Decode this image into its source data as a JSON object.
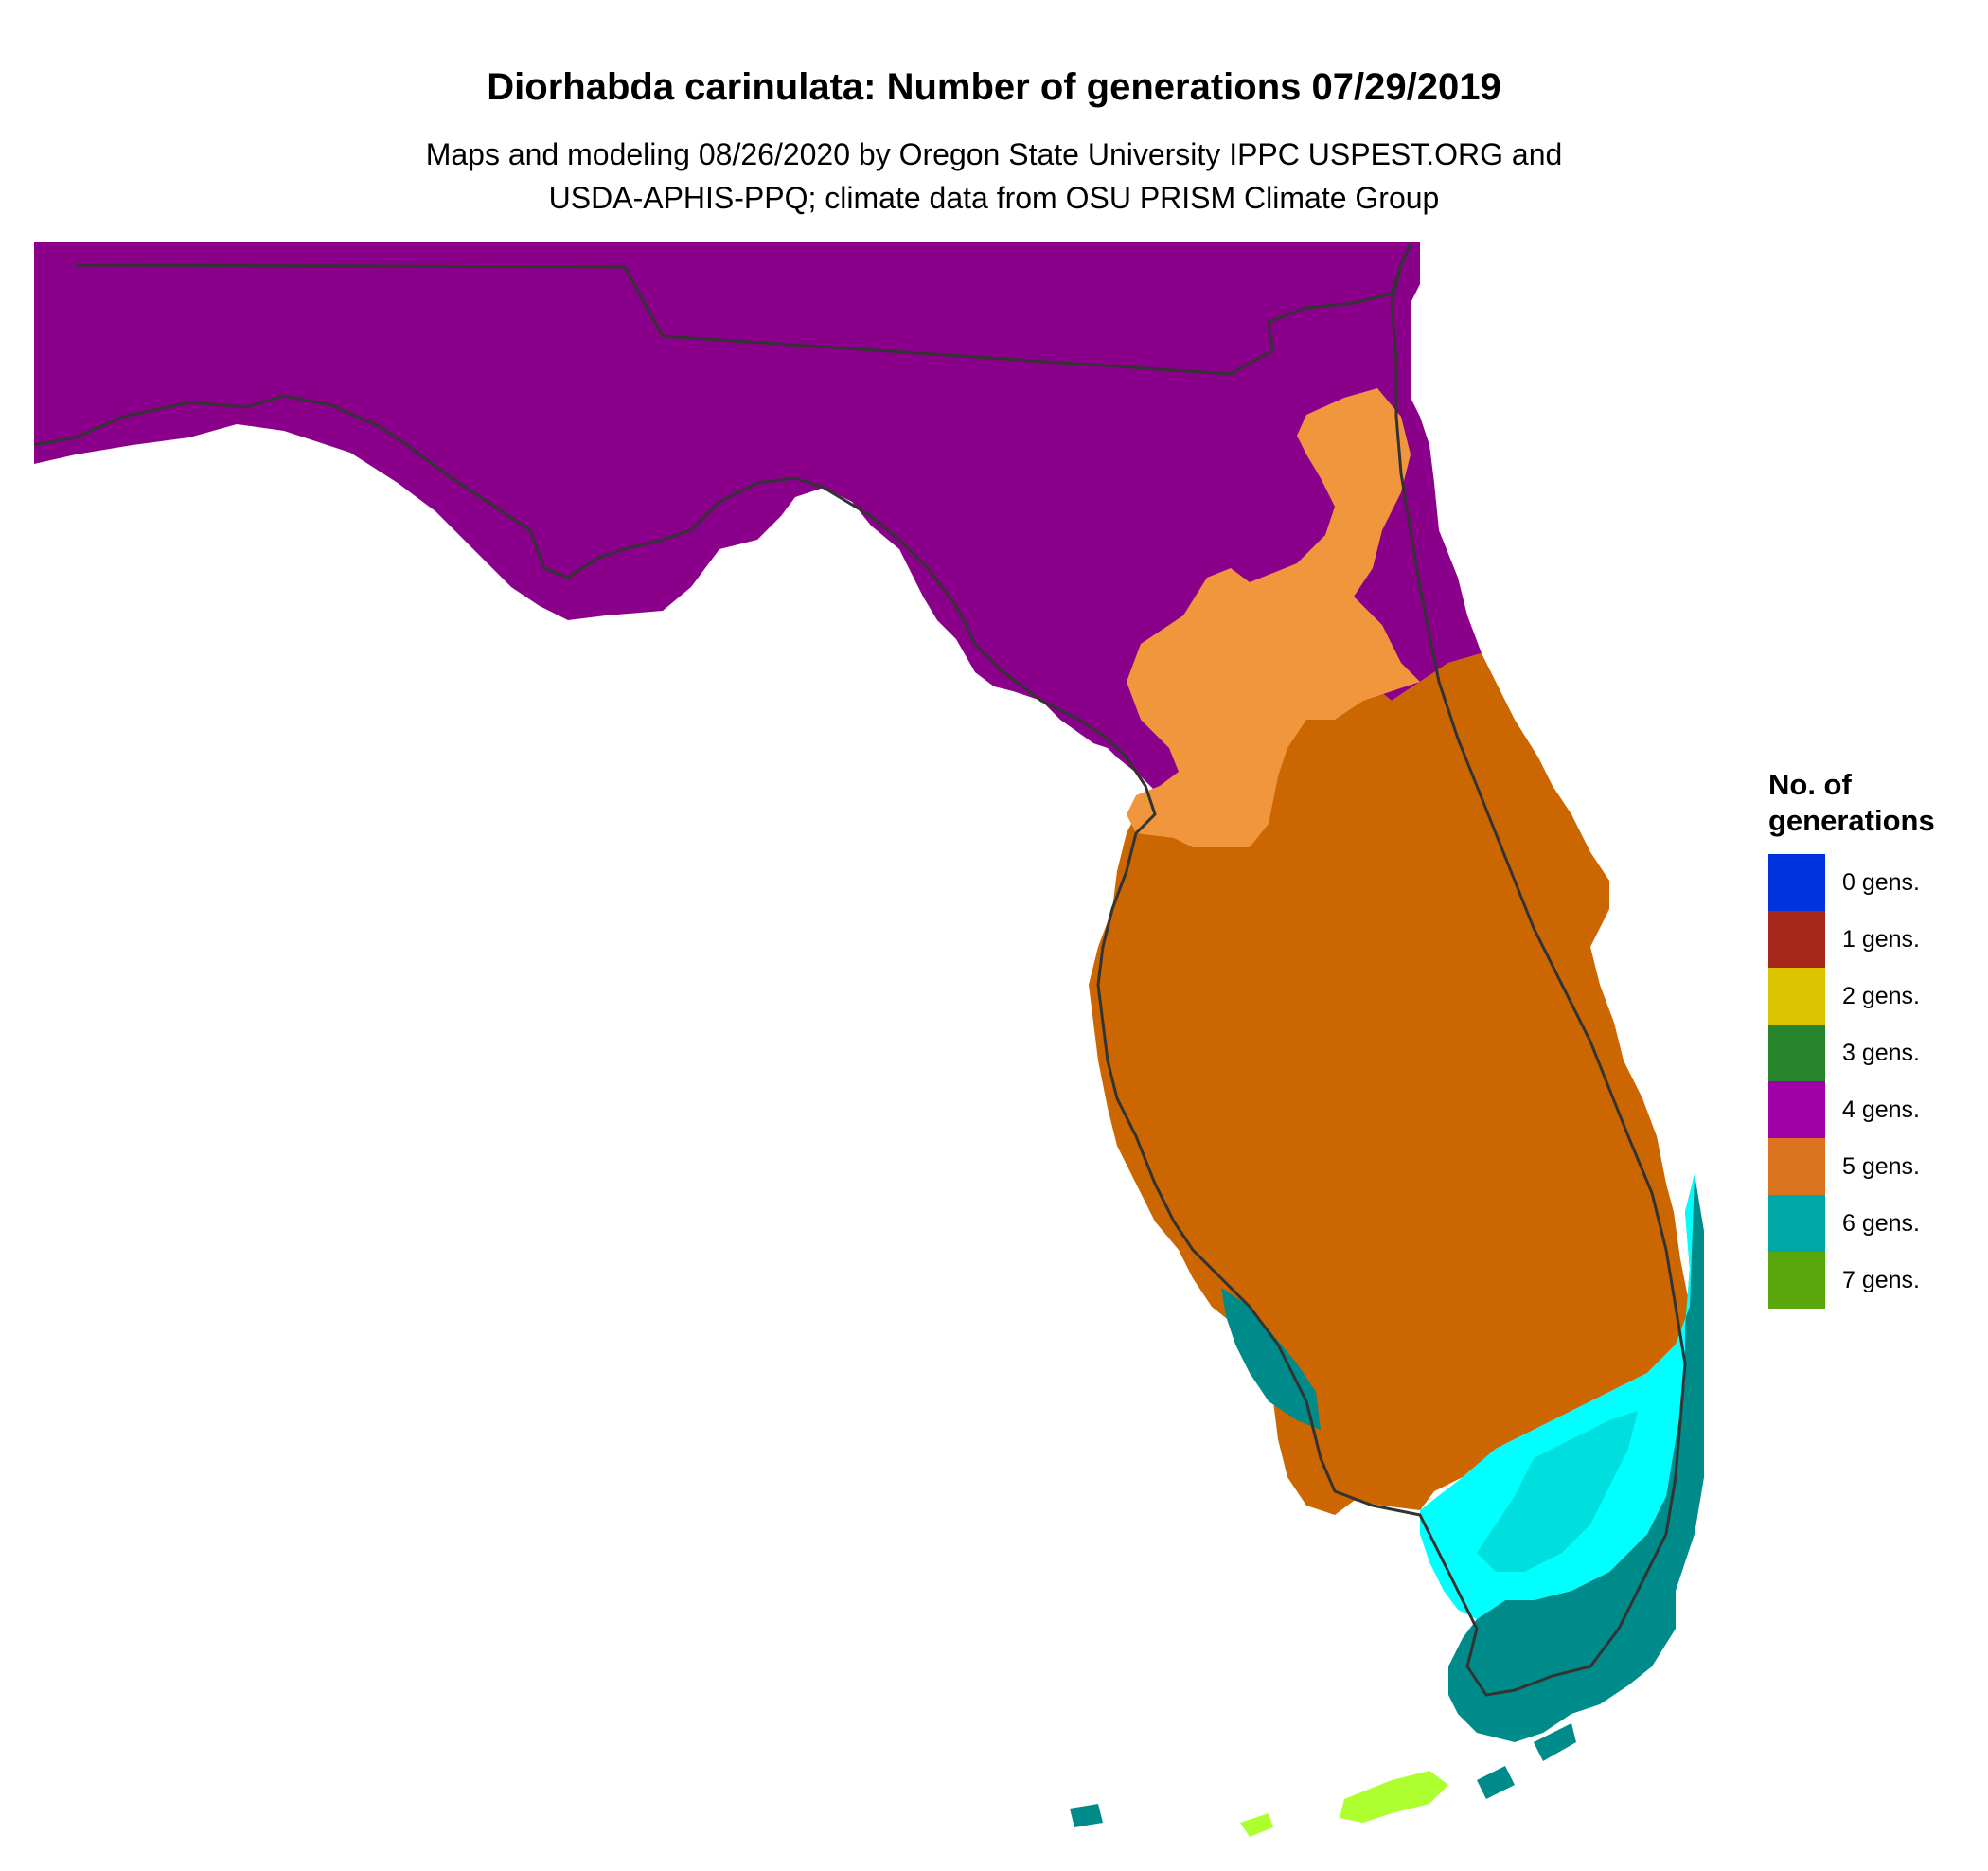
{
  "header": {
    "title": "Diorhabda carinulata: Number of generations 07/29/2019",
    "subtitle_line1": "Maps and modeling 08/26/2020 by Oregon State University IPPC USPEST.ORG and",
    "subtitle_line2": "USDA-APHIS-PPQ; climate data from OSU PRISM Climate Group"
  },
  "legend": {
    "title_line1": "No. of",
    "title_line2": "generations",
    "items": [
      {
        "label": "0 gens.",
        "color": "#0033dd"
      },
      {
        "label": "1 gens.",
        "color": "#a6281a"
      },
      {
        "label": "2 gens.",
        "color": "#dcc300"
      },
      {
        "label": "3 gens.",
        "color": "#26852a"
      },
      {
        "label": "4 gens.",
        "color": "#a000a8"
      },
      {
        "label": "5 gens.",
        "color": "#db721e"
      },
      {
        "label": "6 gens.",
        "color": "#00a7a7"
      },
      {
        "label": "7 gens.",
        "color": "#5aa70d"
      }
    ]
  },
  "map_colors": {
    "gen4": "#8b008b",
    "gen5": "#cc6600",
    "gen5_light": "#f0963c",
    "gen6": "#008b8b",
    "gen6_cyan": "#00ffff",
    "gen6_light_cyan": "#00dede",
    "gen7": "#adff2f",
    "outline": "#333333"
  }
}
